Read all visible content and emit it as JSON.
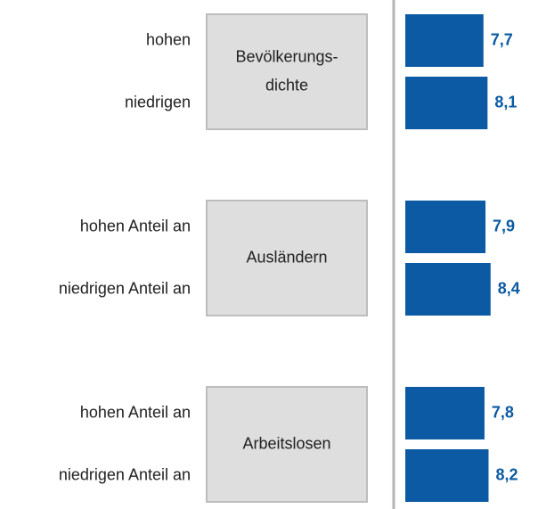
{
  "chart_data": {
    "type": "bar",
    "color": "#0b5aa3",
    "groups": [
      {
        "label": [
          "Bevölkerungs-",
          "dichte"
        ],
        "categories": [
          "hohen",
          "niedrigen"
        ],
        "values": [
          7.7,
          8.1
        ],
        "value_labels": [
          "7,7",
          "8,1"
        ]
      },
      {
        "label": [
          "Ausländern"
        ],
        "categories": [
          "hohen Anteil an",
          "niedrigen Anteil an"
        ],
        "values": [
          7.9,
          8.4
        ],
        "value_labels": [
          "7,9",
          "8,4"
        ]
      },
      {
        "label": [
          "Arbeitslosen"
        ],
        "categories": [
          "hohen Anteil an",
          "niedrigen Anteil an"
        ],
        "values": [
          7.8,
          8.2
        ],
        "value_labels": [
          "7,8",
          "8,2"
        ]
      }
    ]
  }
}
